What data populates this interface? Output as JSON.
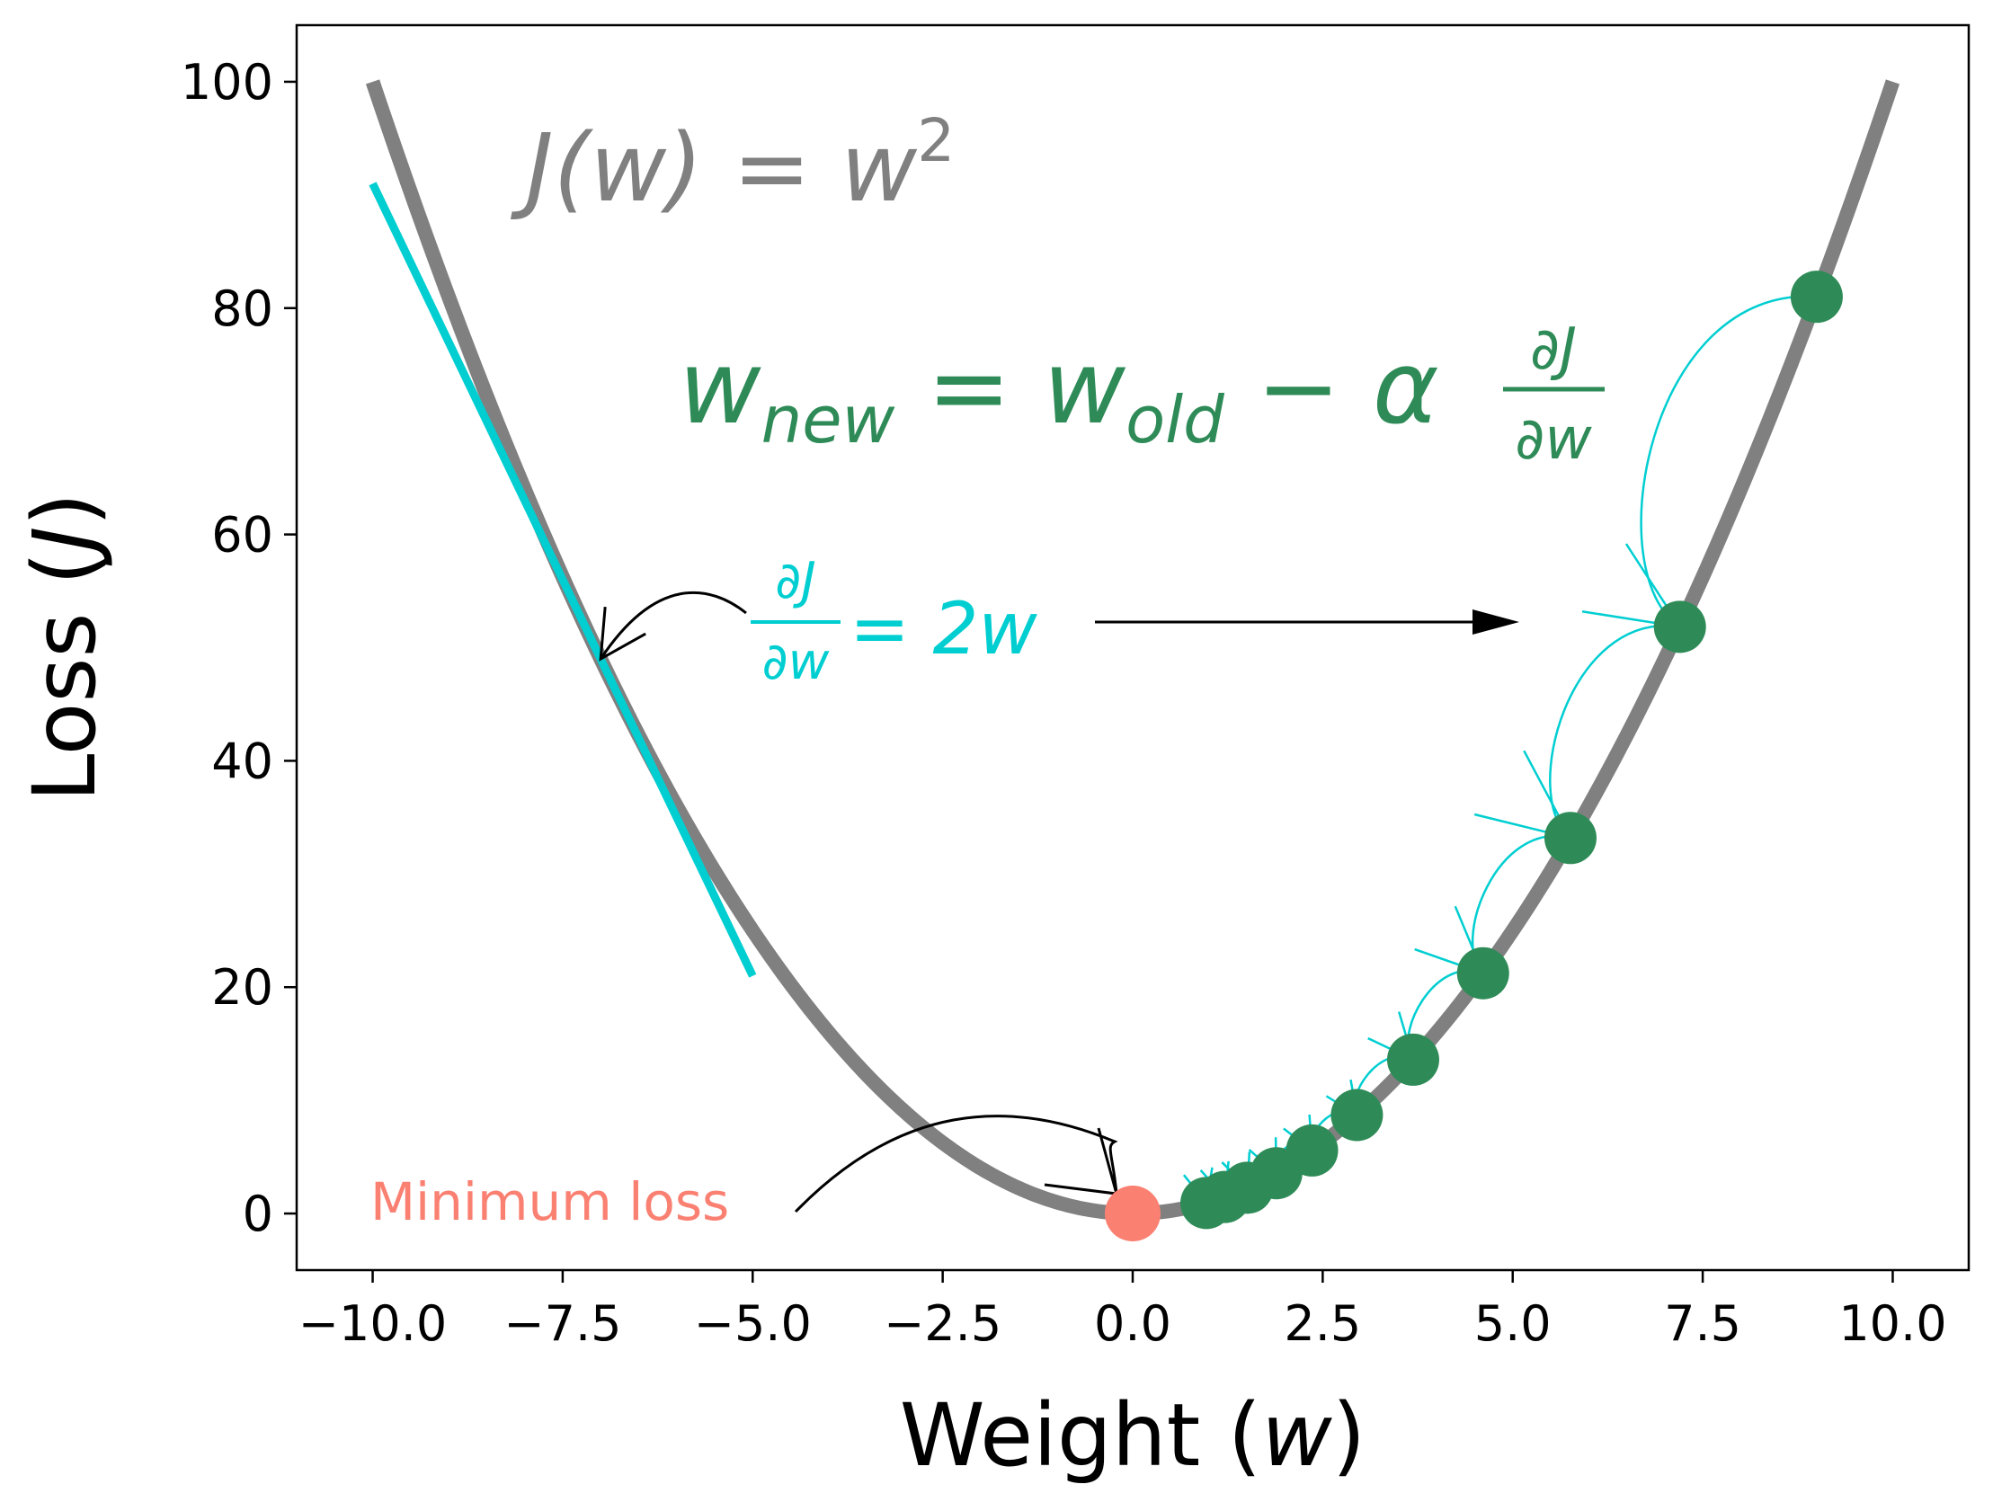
{
  "chart_data": {
    "type": "line",
    "title": "",
    "xlabel": {
      "prefix": "Weight (",
      "var": "w",
      "suffix": ")"
    },
    "ylabel": {
      "prefix": "Loss (",
      "var": "J",
      "suffix": ")"
    },
    "xlim": [
      -11,
      11
    ],
    "ylim": [
      -5,
      105
    ],
    "xticks": [
      -10.0,
      -7.5,
      -5.0,
      -2.5,
      0.0,
      2.5,
      5.0,
      7.5,
      10.0
    ],
    "xtick_labels": [
      "−10.0",
      "−7.5",
      "−5.0",
      "−2.5",
      "0.0",
      "2.5",
      "5.0",
      "7.5",
      "10.0"
    ],
    "yticks": [
      0,
      20,
      40,
      60,
      80,
      100
    ],
    "ytick_labels": [
      "0",
      "20",
      "40",
      "60",
      "80",
      "100"
    ],
    "grid": false,
    "colors": {
      "curve": "#808080",
      "tangent": "#00ced1",
      "steps": "#2e8b57",
      "minimum": "#fa8072",
      "arrow": "#000000"
    },
    "curve": {
      "function": "w^2",
      "x_range": [
        -10,
        10
      ]
    },
    "tangent": {
      "at_x": -7,
      "x_range": [
        -10,
        -5
      ]
    },
    "gd_steps": {
      "x": [
        9.0,
        7.2,
        5.76,
        4.61,
        3.69,
        2.95,
        2.36,
        1.89,
        1.51,
        1.21,
        0.97
      ],
      "y": [
        81.0,
        51.84,
        33.18,
        21.23,
        13.59,
        8.7,
        5.57,
        3.56,
        2.28,
        1.46,
        0.93
      ]
    },
    "minimum_point": {
      "x": 0,
      "y": 0
    },
    "annotations": {
      "loss_eq": {
        "lhs": "J(w)",
        "eq": " = ",
        "base": "w",
        "exp": "2"
      },
      "update_rule": {
        "w1": "w",
        "sub1": "new",
        "eq": " = ",
        "w2": "w",
        "sub2": "old",
        "minus": " − ",
        "alpha": "α",
        "num": "∂J",
        "den": "∂w"
      },
      "derivative": {
        "num": "∂J",
        "den": "∂w",
        "rhs": " = 2w"
      },
      "minimum_label": "Minimum loss"
    }
  }
}
